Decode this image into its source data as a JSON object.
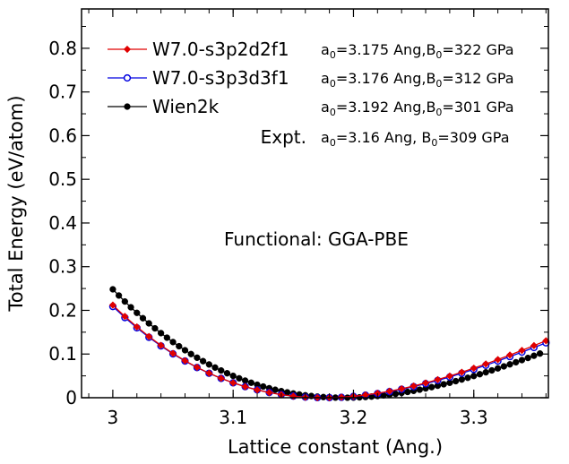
{
  "chart_data": {
    "type": "line",
    "xlabel": "Lattice constant (Ang.)",
    "ylabel": "Total Energy (eV/atom)",
    "xlim": [
      2.974,
      3.362
    ],
    "ylim": [
      0,
      0.89
    ],
    "xticks": [
      {
        "value": 3.0,
        "label": "3"
      },
      {
        "value": 3.1,
        "label": "3.1"
      },
      {
        "value": 3.2,
        "label": "3.2"
      },
      {
        "value": 3.3,
        "label": "3.3"
      }
    ],
    "yticks": [
      {
        "value": 0,
        "label": "0"
      },
      {
        "value": 0.1,
        "label": "0.1"
      },
      {
        "value": 0.2,
        "label": "0.2"
      },
      {
        "value": 0.3,
        "label": "0.3"
      },
      {
        "value": 0.4,
        "label": "0.4"
      },
      {
        "value": 0.5,
        "label": "0.5"
      },
      {
        "value": 0.6,
        "label": "0.6"
      },
      {
        "value": 0.7,
        "label": "0.7"
      },
      {
        "value": 0.8,
        "label": "0.8"
      }
    ],
    "annotation": "Functional: GGA-PBE",
    "legend_position": "top-left",
    "series": [
      {
        "name": "W7.0-s3p2d2f1",
        "color": "#e00000",
        "marker": "diamond-filled",
        "a0": 3.175,
        "b0": 322,
        "curv": 5.41,
        "asym": 0.32,
        "x_start": 3.0,
        "x_end": 3.36,
        "x_step": 0.01,
        "param_a": "=3.175 Ang,",
        "param_b": "=322 GPa"
      },
      {
        "name": "W7.0-s3p3d3f1",
        "color": "#0000e0",
        "marker": "circle-open",
        "a0": 3.176,
        "b0": 312,
        "curv": 5.26,
        "asym": 0.32,
        "x_start": 3.0,
        "x_end": 3.36,
        "x_step": 0.01,
        "param_a": "=3.176 Ang,",
        "param_b": "=312 GPa"
      },
      {
        "name": "Wien2k",
        "color": "#000000",
        "marker": "circle-filled",
        "a0": 3.192,
        "b0": 301,
        "curv": 5.15,
        "asym": 0.32,
        "x_start": 3.0,
        "x_end": 3.355,
        "x_step": 0.005,
        "param_a": "=3.192 Ang,",
        "param_b": "=301 GPa"
      }
    ],
    "expt": {
      "label": "Expt.",
      "param_a": "=3.16  Ang, ",
      "param_b": "=309 GPa"
    },
    "symbols": {
      "a": "a",
      "b": "B",
      "sub": "0"
    }
  }
}
